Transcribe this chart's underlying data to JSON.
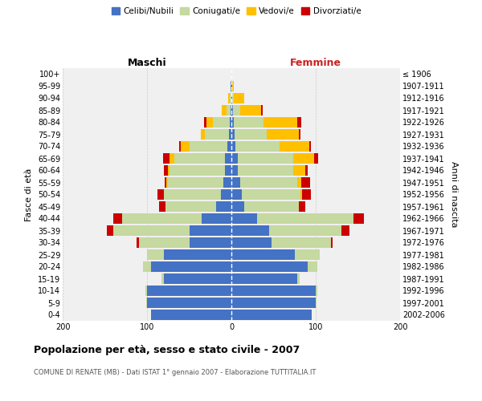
{
  "age_groups": [
    "0-4",
    "5-9",
    "10-14",
    "15-19",
    "20-24",
    "25-29",
    "30-34",
    "35-39",
    "40-44",
    "45-49",
    "50-54",
    "55-59",
    "60-64",
    "65-69",
    "70-74",
    "75-79",
    "80-84",
    "85-89",
    "90-94",
    "95-99",
    "100+"
  ],
  "birth_years": [
    "2002-2006",
    "1997-2001",
    "1992-1996",
    "1987-1991",
    "1982-1986",
    "1977-1981",
    "1972-1976",
    "1967-1971",
    "1962-1966",
    "1957-1961",
    "1952-1956",
    "1947-1951",
    "1942-1946",
    "1937-1941",
    "1932-1936",
    "1927-1931",
    "1922-1926",
    "1917-1921",
    "1912-1916",
    "1907-1911",
    "≤ 1906"
  ],
  "maschi": {
    "celibi": [
      95,
      100,
      100,
      80,
      95,
      80,
      50,
      50,
      35,
      18,
      12,
      10,
      8,
      8,
      5,
      3,
      2,
      1,
      0,
      1,
      0
    ],
    "coniugati": [
      0,
      1,
      2,
      3,
      10,
      20,
      60,
      90,
      95,
      60,
      68,
      65,
      65,
      60,
      45,
      28,
      20,
      5,
      2,
      0,
      0
    ],
    "vedovi": [
      0,
      0,
      0,
      0,
      0,
      0,
      0,
      0,
      0,
      0,
      0,
      2,
      2,
      5,
      10,
      5,
      8,
      5,
      2,
      0,
      0
    ],
    "divorziati": [
      0,
      0,
      0,
      0,
      0,
      0,
      2,
      8,
      10,
      8,
      8,
      2,
      5,
      8,
      2,
      0,
      2,
      0,
      0,
      0,
      0
    ]
  },
  "femmine": {
    "nubili": [
      95,
      100,
      100,
      78,
      90,
      75,
      48,
      45,
      30,
      15,
      12,
      10,
      8,
      8,
      5,
      4,
      3,
      2,
      1,
      1,
      0
    ],
    "coniugate": [
      0,
      1,
      2,
      3,
      12,
      30,
      70,
      85,
      115,
      65,
      70,
      68,
      65,
      65,
      52,
      38,
      35,
      8,
      2,
      0,
      0
    ],
    "vedove": [
      0,
      0,
      0,
      0,
      0,
      0,
      0,
      0,
      0,
      0,
      2,
      5,
      15,
      25,
      35,
      38,
      40,
      25,
      12,
      2,
      0
    ],
    "divorziate": [
      0,
      0,
      0,
      0,
      0,
      0,
      2,
      10,
      12,
      8,
      10,
      10,
      2,
      5,
      2,
      2,
      5,
      2,
      0,
      0,
      0
    ]
  },
  "colors": {
    "celibi": "#4472c4",
    "coniugati": "#c5d9a0",
    "vedovi": "#ffc000",
    "divorziati": "#cc0000"
  },
  "xlim": 200,
  "title": "Popolazione per età, sesso e stato civile - 2007",
  "subtitle": "COMUNE DI RENATE (MB) - Dati ISTAT 1° gennaio 2007 - Elaborazione TUTTITALIA.IT",
  "ylabel_left": "Fasce di età",
  "ylabel_right": "Anni di nascita",
  "xlabel_maschi": "Maschi",
  "xlabel_femmine": "Femmine",
  "legend_labels": [
    "Celibi/Nubili",
    "Coniugati/e",
    "Vedovi/e",
    "Divorziati/e"
  ],
  "bg_color": "#f0f0f0",
  "legend_marker_colors": [
    "#4472c4",
    "#c5d9a0",
    "#ffc000",
    "#cc0000"
  ]
}
